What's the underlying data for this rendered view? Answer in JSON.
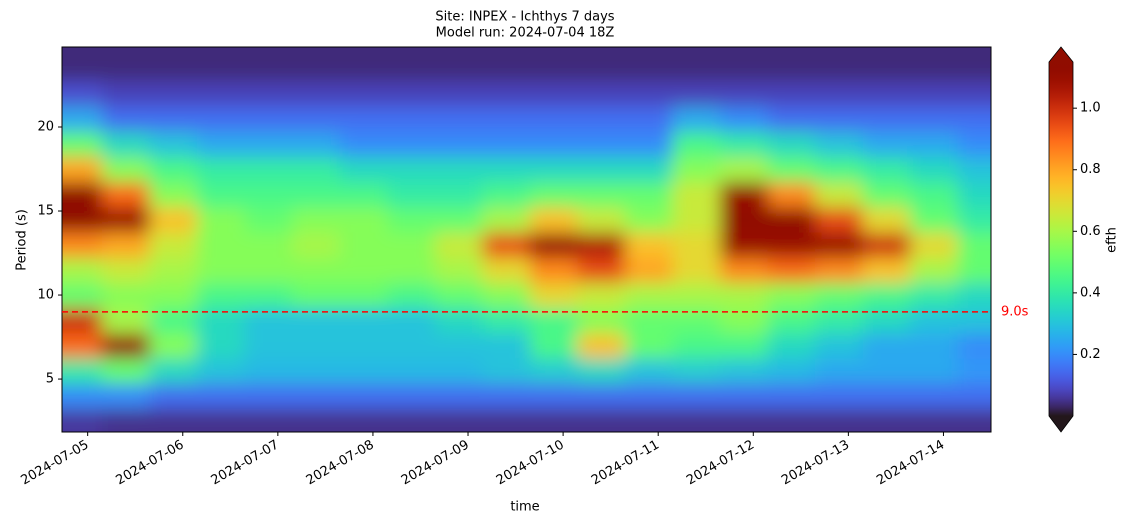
{
  "chart_data": {
    "type": "heatmap",
    "title": "Site: INPEX - Ichthys 7 days",
    "subtitle": "Model run: 2024-07-04 18Z",
    "x_label": "time",
    "y_label": "Period (s)",
    "colorbar_label": "efth",
    "colormap": "turbo",
    "x": [
      -0.1,
      0.4,
      0.9,
      1.4,
      1.9,
      2.4,
      2.9,
      3.4,
      3.9,
      4.4,
      4.9,
      5.4,
      5.9,
      6.4,
      6.9,
      7.4,
      7.9,
      8.4,
      8.9,
      9.4
    ],
    "y": [
      2.5,
      4,
      5.5,
      7,
      8.5,
      10,
      11.5,
      13,
      14.5,
      16,
      17.5,
      19,
      20.5,
      22,
      23.5
    ],
    "z": [
      [
        0.06,
        0.05,
        0.05,
        0.05,
        0.05,
        0.05,
        0.05,
        0.05,
        0.05,
        0.05,
        0.05,
        0.05,
        0.05,
        0.05,
        0.05,
        0.05,
        0.05,
        0.05,
        0.05,
        0.05
      ],
      [
        0.2,
        0.2,
        0.15,
        0.15,
        0.15,
        0.15,
        0.15,
        0.15,
        0.15,
        0.15,
        0.15,
        0.15,
        0.15,
        0.15,
        0.15,
        0.15,
        0.15,
        0.15,
        0.15,
        0.15
      ],
      [
        0.4,
        0.5,
        0.35,
        0.3,
        0.28,
        0.28,
        0.28,
        0.28,
        0.28,
        0.3,
        0.32,
        0.35,
        0.3,
        0.32,
        0.3,
        0.28,
        0.25,
        0.25,
        0.25,
        0.22
      ],
      [
        0.9,
        1.1,
        0.55,
        0.35,
        0.3,
        0.3,
        0.3,
        0.3,
        0.3,
        0.3,
        0.45,
        0.75,
        0.5,
        0.45,
        0.45,
        0.35,
        0.3,
        0.25,
        0.25,
        0.2
      ],
      [
        1.0,
        0.6,
        0.45,
        0.35,
        0.3,
        0.3,
        0.3,
        0.3,
        0.35,
        0.4,
        0.45,
        0.55,
        0.5,
        0.5,
        0.55,
        0.45,
        0.4,
        0.35,
        0.3,
        0.3
      ],
      [
        0.5,
        0.55,
        0.55,
        0.45,
        0.45,
        0.5,
        0.5,
        0.45,
        0.5,
        0.55,
        0.7,
        0.65,
        0.6,
        0.6,
        0.6,
        0.55,
        0.5,
        0.45,
        0.4,
        0.35
      ],
      [
        0.6,
        0.65,
        0.6,
        0.55,
        0.55,
        0.55,
        0.55,
        0.55,
        0.6,
        0.7,
        0.85,
        0.95,
        0.8,
        0.7,
        0.85,
        0.9,
        0.85,
        0.75,
        0.6,
        0.5
      ],
      [
        0.85,
        0.8,
        0.65,
        0.55,
        0.55,
        0.6,
        0.55,
        0.55,
        0.65,
        0.95,
        1.1,
        1.05,
        0.75,
        0.7,
        1.1,
        1.1,
        1.1,
        1.0,
        0.7,
        0.5
      ],
      [
        1.15,
        1.1,
        0.75,
        0.55,
        0.5,
        0.55,
        0.55,
        0.5,
        0.5,
        0.6,
        0.75,
        0.65,
        0.55,
        0.65,
        1.15,
        1.15,
        0.95,
        0.7,
        0.5,
        0.4
      ],
      [
        1.15,
        0.9,
        0.55,
        0.45,
        0.45,
        0.45,
        0.45,
        0.4,
        0.4,
        0.45,
        0.5,
        0.5,
        0.5,
        0.65,
        1.1,
        0.85,
        0.65,
        0.5,
        0.45,
        0.35
      ],
      [
        0.8,
        0.55,
        0.45,
        0.4,
        0.4,
        0.4,
        0.35,
        0.35,
        0.35,
        0.35,
        0.35,
        0.35,
        0.35,
        0.55,
        0.6,
        0.5,
        0.45,
        0.4,
        0.35,
        0.3
      ],
      [
        0.5,
        0.35,
        0.3,
        0.25,
        0.25,
        0.25,
        0.2,
        0.2,
        0.2,
        0.2,
        0.2,
        0.2,
        0.2,
        0.45,
        0.4,
        0.35,
        0.3,
        0.25,
        0.25,
        0.2
      ],
      [
        0.25,
        0.15,
        0.15,
        0.15,
        0.15,
        0.15,
        0.15,
        0.15,
        0.15,
        0.15,
        0.15,
        0.15,
        0.15,
        0.25,
        0.2,
        0.15,
        0.15,
        0.15,
        0.15,
        0.15
      ],
      [
        0.1,
        0.08,
        0.08,
        0.08,
        0.08,
        0.08,
        0.08,
        0.08,
        0.08,
        0.08,
        0.08,
        0.08,
        0.08,
        0.08,
        0.08,
        0.08,
        0.08,
        0.08,
        0.08,
        0.08
      ],
      [
        0.04,
        0.04,
        0.04,
        0.04,
        0.04,
        0.04,
        0.04,
        0.04,
        0.04,
        0.04,
        0.04,
        0.04,
        0.04,
        0.04,
        0.04,
        0.04,
        0.04,
        0.04,
        0.04,
        0.04
      ]
    ],
    "xlim": [
      -0.27,
      9.5
    ],
    "xticks": [
      {
        "value": 0,
        "label": "2024-07-05"
      },
      {
        "value": 1,
        "label": "2024-07-06"
      },
      {
        "value": 2,
        "label": "2024-07-07"
      },
      {
        "value": 3,
        "label": "2024-07-08"
      },
      {
        "value": 4,
        "label": "2024-07-09"
      },
      {
        "value": 5,
        "label": "2024-07-10"
      },
      {
        "value": 6,
        "label": "2024-07-11"
      },
      {
        "value": 7,
        "label": "2024-07-12"
      },
      {
        "value": 8,
        "label": "2024-07-13"
      },
      {
        "value": 9,
        "label": "2024-07-14"
      }
    ],
    "ylim": [
      1.85,
      24.76
    ],
    "yticks": [
      5,
      10,
      15,
      20
    ],
    "clim": [
      0,
      1.15
    ],
    "cticks": [
      0.2,
      0.4,
      0.6,
      0.8,
      {
        "value": 1.0,
        "label": "1.0"
      }
    ],
    "hline": {
      "value": 9,
      "label": "9.0s",
      "color": "#ff0000"
    }
  }
}
